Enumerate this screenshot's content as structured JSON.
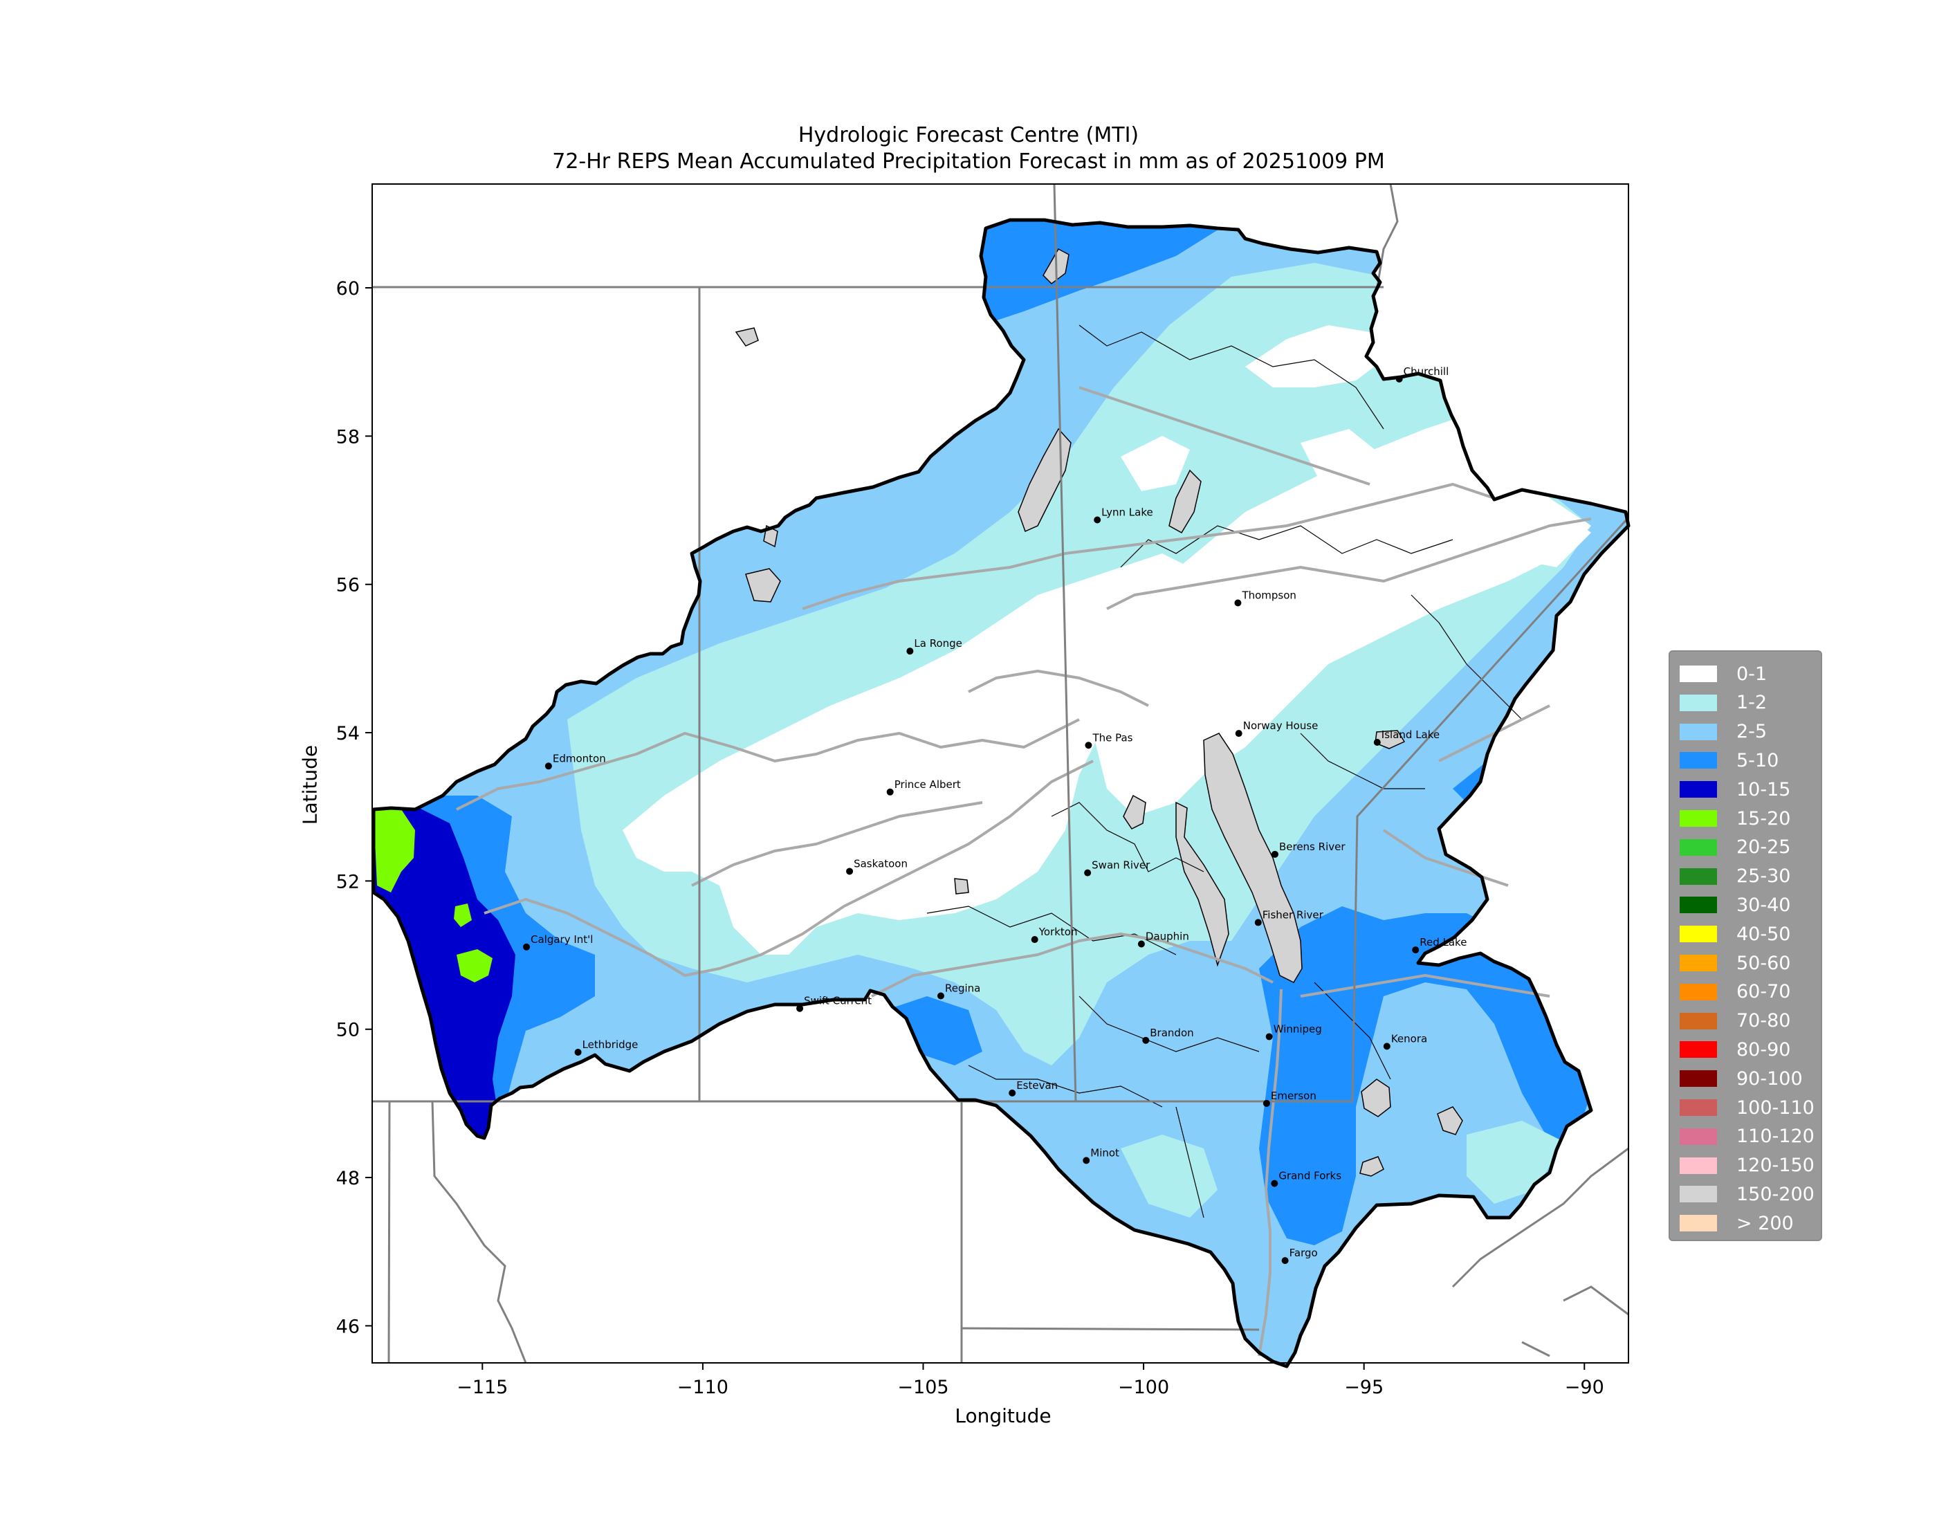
{
  "title": "Hydrologic Forecast Centre (MTI)",
  "subtitle": "72-Hr REPS Mean Accumulated Precipitation Forecast in mm as of 20251009 PM",
  "xlabel": "Longitude",
  "ylabel": "Latitude",
  "x_ticks": [
    "−115",
    "−110",
    "−105",
    "−100",
    "−95",
    "−90"
  ],
  "y_ticks": [
    "46",
    "48",
    "50",
    "52",
    "54",
    "56",
    "58",
    "60"
  ],
  "legend": [
    {
      "label": "0-1",
      "color": "#ffffff"
    },
    {
      "label": "1-2",
      "color": "#afeeee"
    },
    {
      "label": "2-5",
      "color": "#87cefa"
    },
    {
      "label": "5-10",
      "color": "#1e90ff"
    },
    {
      "label": "10-15",
      "color": "#0000cd"
    },
    {
      "label": "15-20",
      "color": "#7cfc00"
    },
    {
      "label": "20-25",
      "color": "#32cd32"
    },
    {
      "label": "25-30",
      "color": "#228b22"
    },
    {
      "label": "30-40",
      "color": "#006400"
    },
    {
      "label": "40-50",
      "color": "#ffff00"
    },
    {
      "label": "50-60",
      "color": "#ffa500"
    },
    {
      "label": "60-70",
      "color": "#ff8c00"
    },
    {
      "label": "70-80",
      "color": "#d2691e"
    },
    {
      "label": "80-90",
      "color": "#ff0000"
    },
    {
      "label": "90-100",
      "color": "#800000"
    },
    {
      "label": "100-110",
      "color": "#cd5c5c"
    },
    {
      "label": "110-120",
      "color": "#db7093"
    },
    {
      "label": "120-150",
      "color": "#ffc0cb"
    },
    {
      "label": "150-200",
      "color": "#d3d3d3"
    },
    {
      "label": "> 200",
      "color": "#ffdab9"
    }
  ],
  "cities": [
    {
      "name": "Churchill",
      "lon": -94.2,
      "lat": 58.77
    },
    {
      "name": "Lynn Lake",
      "lon": -101.05,
      "lat": 56.87
    },
    {
      "name": "Thompson",
      "lon": -97.86,
      "lat": 55.75
    },
    {
      "name": "La Ronge",
      "lon": -105.3,
      "lat": 55.1
    },
    {
      "name": "The Pas",
      "lon": -101.25,
      "lat": 53.83
    },
    {
      "name": "Norway House",
      "lon": -97.84,
      "lat": 53.99
    },
    {
      "name": "Island Lake",
      "lon": -94.7,
      "lat": 53.87
    },
    {
      "name": "Edmonton",
      "lon": -113.5,
      "lat": 53.55
    },
    {
      "name": "Prince Albert",
      "lon": -105.75,
      "lat": 53.2
    },
    {
      "name": "Saskatoon",
      "lon": -106.67,
      "lat": 52.13
    },
    {
      "name": "Swan River",
      "lon": -101.27,
      "lat": 52.11
    },
    {
      "name": "Berens River",
      "lon": -97.02,
      "lat": 52.36
    },
    {
      "name": "Calgary Int'l",
      "lon": -114.0,
      "lat": 51.11
    },
    {
      "name": "Yorkton",
      "lon": -102.47,
      "lat": 51.21
    },
    {
      "name": "Dauphin",
      "lon": -100.05,
      "lat": 51.15
    },
    {
      "name": "Fisher River",
      "lon": -97.4,
      "lat": 51.44
    },
    {
      "name": "Red Lake",
      "lon": -93.83,
      "lat": 51.07
    },
    {
      "name": "Swift Current",
      "lon": -107.8,
      "lat": 50.28
    },
    {
      "name": "Regina",
      "lon": -104.6,
      "lat": 50.45
    },
    {
      "name": "Brandon",
      "lon": -99.95,
      "lat": 49.85
    },
    {
      "name": "Winnipeg",
      "lon": -97.15,
      "lat": 49.9
    },
    {
      "name": "Kenora",
      "lon": -94.48,
      "lat": 49.77
    },
    {
      "name": "Lethbridge",
      "lon": -112.83,
      "lat": 49.69
    },
    {
      "name": "Estevan",
      "lon": -102.98,
      "lat": 49.14
    },
    {
      "name": "Emerson",
      "lon": -97.21,
      "lat": 49.0
    },
    {
      "name": "Minot",
      "lon": -101.3,
      "lat": 48.23
    },
    {
      "name": "Grand Forks",
      "lon": -97.03,
      "lat": 47.92
    },
    {
      "name": "Fargo",
      "lon": -96.79,
      "lat": 46.88
    }
  ]
}
